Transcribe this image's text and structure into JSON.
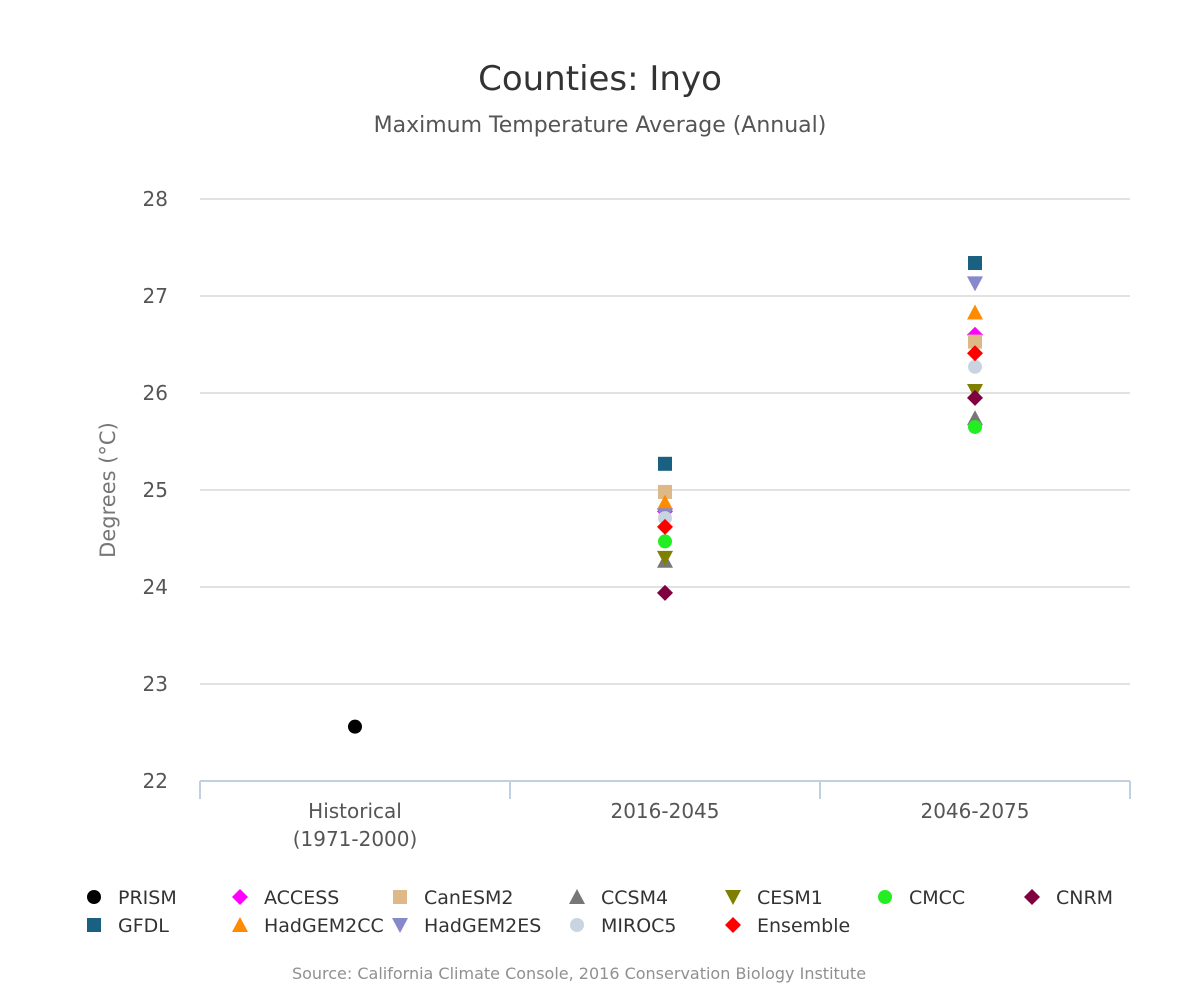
{
  "chart_data": {
    "type": "scatter",
    "title": "Counties: Inyo",
    "subtitle": "Maximum Temperature Average (Annual)",
    "ylabel": "Degrees (°C)",
    "ylim": [
      22,
      28
    ],
    "yticks": [
      22,
      23,
      24,
      25,
      26,
      27,
      28
    ],
    "grid": true,
    "legend_position": "bottom",
    "categories": [
      {
        "line1": "Historical",
        "line2": "(1971-2000)"
      },
      {
        "line1": "2016-2045",
        "line2": ""
      },
      {
        "line1": "2046-2075",
        "line2": ""
      }
    ],
    "series": [
      {
        "name": "PRISM",
        "marker": "circle",
        "color": "#000000",
        "values": [
          22.56,
          null,
          null
        ]
      },
      {
        "name": "ACCESS",
        "marker": "diamond",
        "color": "#ff00ff",
        "values": [
          null,
          24.78,
          26.6
        ]
      },
      {
        "name": "CanESM2",
        "marker": "square",
        "color": "#deb887",
        "values": [
          null,
          24.98,
          26.53
        ]
      },
      {
        "name": "CCSM4",
        "marker": "triangle",
        "color": "#777777",
        "values": [
          null,
          24.27,
          25.74
        ]
      },
      {
        "name": "CESM1",
        "marker": "triangle-down",
        "color": "#808000",
        "values": [
          null,
          24.3,
          26.02
        ]
      },
      {
        "name": "CMCC",
        "marker": "circle",
        "color": "#22ee22",
        "values": [
          null,
          24.47,
          25.65
        ]
      },
      {
        "name": "CNRM",
        "marker": "diamond",
        "color": "#800040",
        "values": [
          null,
          23.94,
          25.95
        ]
      },
      {
        "name": "GFDL",
        "marker": "square",
        "color": "#1a6080",
        "values": [
          null,
          25.27,
          27.34
        ]
      },
      {
        "name": "HadGEM2CC",
        "marker": "triangle",
        "color": "#ff8c00",
        "values": [
          null,
          24.87,
          26.83
        ]
      },
      {
        "name": "HadGEM2ES",
        "marker": "triangle-down",
        "color": "#8888cc",
        "values": [
          null,
          24.74,
          27.13
        ]
      },
      {
        "name": "MIROC5",
        "marker": "circle",
        "color": "#c8d4e0",
        "values": [
          null,
          24.71,
          26.27
        ]
      },
      {
        "name": "Ensemble",
        "marker": "diamond",
        "color": "#ff0000",
        "values": [
          null,
          24.62,
          26.41
        ]
      }
    ]
  },
  "credit": "Source: California Climate Console, 2016 Conservation Biology Institute"
}
